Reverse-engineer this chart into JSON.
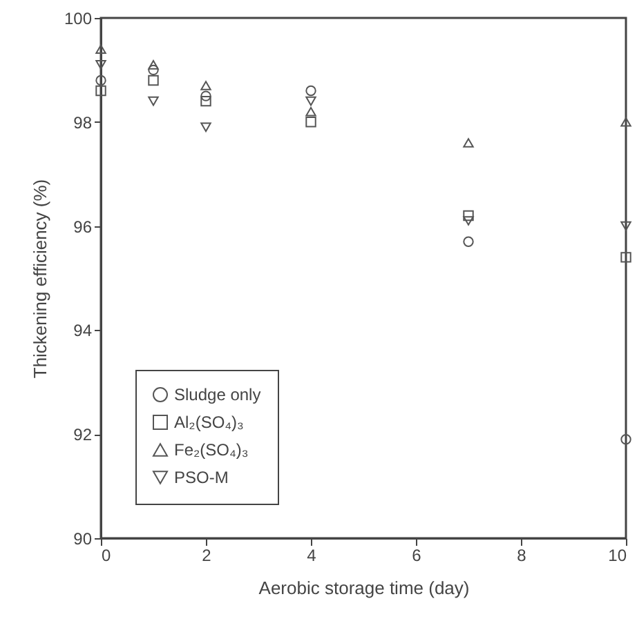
{
  "chart_data": {
    "type": "scatter",
    "xlabel": "Aerobic storage time (day)",
    "ylabel": "Thickening efficiency (%)",
    "x": [
      0,
      1,
      2,
      4,
      7,
      10
    ],
    "series": [
      {
        "name": "Sludge only",
        "color": "#555555",
        "marker": "circle",
        "values": [
          98.8,
          99.0,
          98.5,
          98.6,
          95.7,
          91.9
        ]
      },
      {
        "name": "Al₂(SO₄)₃",
        "color": "#555555",
        "marker": "square",
        "values": [
          98.6,
          98.8,
          98.4,
          98.0,
          96.2,
          95.4
        ]
      },
      {
        "name": "Fe₂(SO₄)₃",
        "color": "#555555",
        "marker": "triangle",
        "values": [
          99.4,
          99.1,
          98.7,
          98.2,
          97.6,
          98.0
        ]
      },
      {
        "name": "PSO-M",
        "color": "#555555",
        "marker": "triangle-down",
        "values": [
          99.1,
          98.4,
          97.9,
          98.4,
          96.1,
          96.0
        ]
      }
    ],
    "xlim": [
      0,
      10
    ],
    "xticks": [
      0,
      2,
      4,
      6,
      8,
      10
    ],
    "ylim": [
      90,
      100
    ],
    "yticks": [
      90,
      92,
      94,
      96,
      98,
      100
    ],
    "grid": false,
    "legend": "bottom left"
  }
}
